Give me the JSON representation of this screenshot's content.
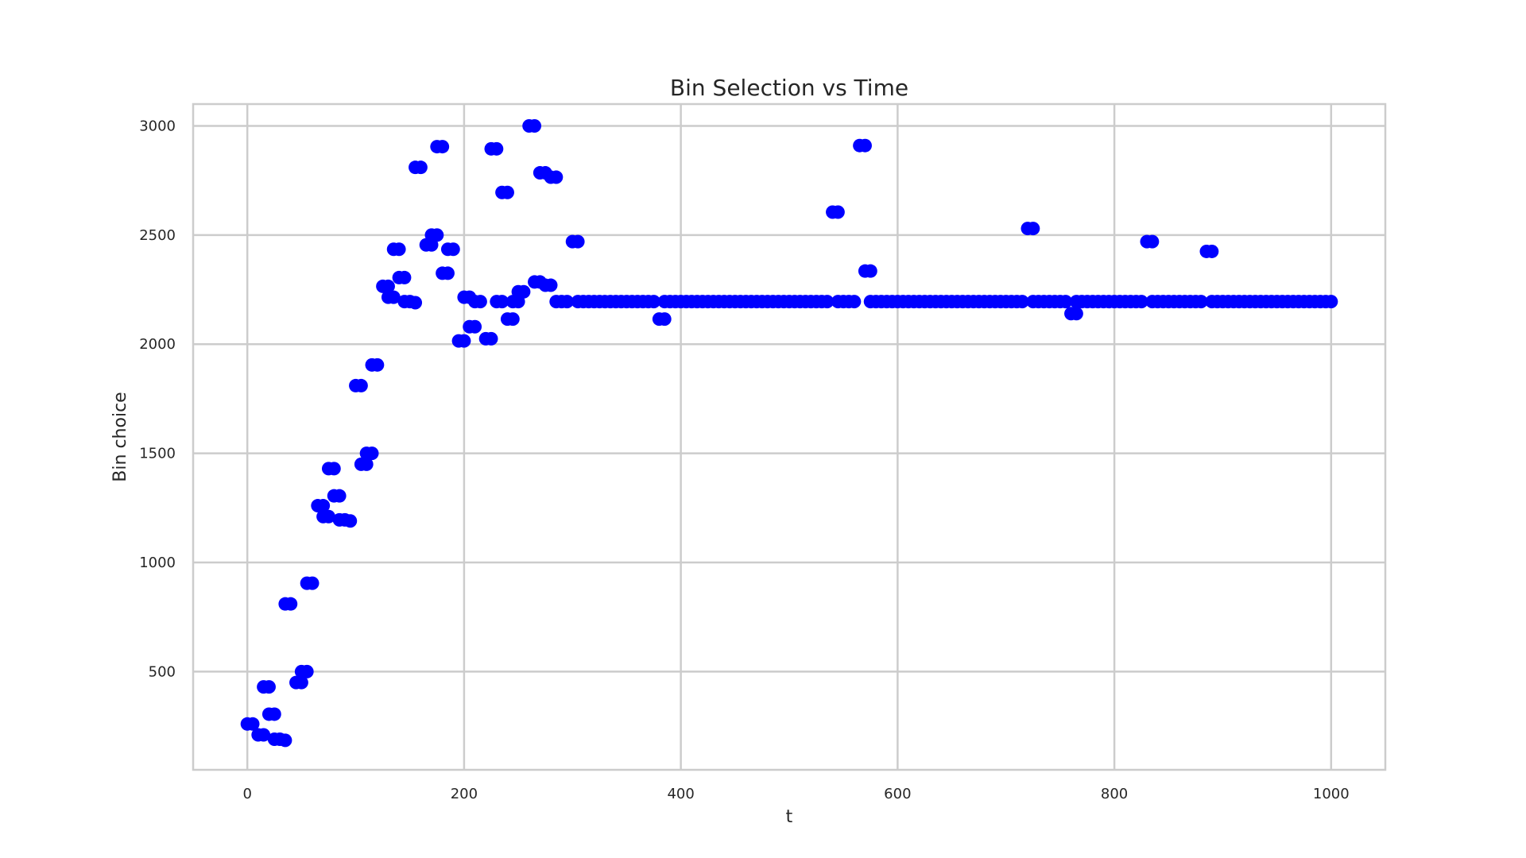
{
  "chart_data": {
    "type": "scatter",
    "title": "Bin Selection vs Time",
    "xlabel": "t",
    "ylabel": "Bin choice",
    "xlim": [
      -50,
      1050
    ],
    "ylim": [
      50,
      3100
    ],
    "xticks": [
      0,
      200,
      400,
      600,
      800,
      1000
    ],
    "yticks": [
      500,
      1000,
      1500,
      2000,
      2500,
      3000
    ],
    "grid": true,
    "legend": "none",
    "marker_color": "#0000ff",
    "series": [
      {
        "points": [
          [
            0,
            260
          ],
          [
            5,
            260
          ],
          [
            10,
            210
          ],
          [
            15,
            210
          ],
          [
            15,
            430
          ],
          [
            20,
            430
          ],
          [
            20,
            305
          ],
          [
            25,
            305
          ],
          [
            25,
            190
          ],
          [
            30,
            190
          ],
          [
            35,
            185
          ],
          [
            35,
            810
          ],
          [
            40,
            810
          ],
          [
            45,
            450
          ],
          [
            50,
            450
          ],
          [
            50,
            500
          ],
          [
            55,
            500
          ],
          [
            55,
            905
          ],
          [
            60,
            905
          ],
          [
            65,
            1260
          ],
          [
            70,
            1260
          ],
          [
            70,
            1210
          ],
          [
            75,
            1210
          ],
          [
            75,
            1430
          ],
          [
            80,
            1430
          ],
          [
            80,
            1305
          ],
          [
            85,
            1305
          ],
          [
            85,
            1195
          ],
          [
            90,
            1195
          ],
          [
            95,
            1190
          ],
          [
            100,
            1810
          ],
          [
            105,
            1810
          ],
          [
            105,
            1450
          ],
          [
            110,
            1450
          ],
          [
            110,
            1500
          ],
          [
            115,
            1500
          ],
          [
            115,
            1905
          ],
          [
            120,
            1905
          ],
          [
            125,
            2265
          ],
          [
            130,
            2265
          ],
          [
            130,
            2215
          ],
          [
            135,
            2215
          ],
          [
            135,
            2435
          ],
          [
            140,
            2435
          ],
          [
            140,
            2305
          ],
          [
            145,
            2305
          ],
          [
            145,
            2195
          ],
          [
            150,
            2195
          ],
          [
            155,
            2190
          ],
          [
            155,
            2810
          ],
          [
            160,
            2810
          ],
          [
            165,
            2455
          ],
          [
            170,
            2455
          ],
          [
            170,
            2500
          ],
          [
            175,
            2500
          ],
          [
            175,
            2905
          ],
          [
            180,
            2905
          ],
          [
            180,
            2325
          ],
          [
            185,
            2325
          ],
          [
            185,
            2435
          ],
          [
            190,
            2435
          ],
          [
            195,
            2015
          ],
          [
            200,
            2015
          ],
          [
            200,
            2215
          ],
          [
            205,
            2215
          ],
          [
            205,
            2080
          ],
          [
            210,
            2080
          ],
          [
            210,
            2195
          ],
          [
            215,
            2195
          ],
          [
            220,
            2025
          ],
          [
            225,
            2025
          ],
          [
            225,
            2895
          ],
          [
            230,
            2895
          ],
          [
            230,
            2195
          ],
          [
            235,
            2195
          ],
          [
            235,
            2695
          ],
          [
            240,
            2695
          ],
          [
            240,
            2115
          ],
          [
            245,
            2115
          ],
          [
            245,
            2195
          ],
          [
            250,
            2195
          ],
          [
            250,
            2240
          ],
          [
            255,
            2240
          ],
          [
            260,
            3000
          ],
          [
            265,
            3000
          ],
          [
            265,
            2285
          ],
          [
            270,
            2285
          ],
          [
            270,
            2785
          ],
          [
            275,
            2785
          ],
          [
            275,
            2270
          ],
          [
            280,
            2270
          ],
          [
            280,
            2765
          ],
          [
            285,
            2765
          ],
          [
            285,
            2195
          ],
          [
            290,
            2195
          ],
          [
            295,
            2195
          ],
          [
            300,
            2470
          ],
          [
            305,
            2470
          ],
          [
            305,
            2195
          ],
          [
            310,
            2195
          ],
          [
            315,
            2195
          ],
          [
            320,
            2195
          ],
          [
            325,
            2195
          ],
          [
            330,
            2195
          ],
          [
            335,
            2195
          ],
          [
            340,
            2195
          ],
          [
            345,
            2195
          ],
          [
            350,
            2195
          ],
          [
            355,
            2195
          ],
          [
            360,
            2195
          ],
          [
            365,
            2195
          ],
          [
            370,
            2195
          ],
          [
            375,
            2195
          ],
          [
            380,
            2115
          ],
          [
            385,
            2115
          ],
          [
            385,
            2195
          ],
          [
            390,
            2195
          ],
          [
            395,
            2195
          ],
          [
            400,
            2195
          ],
          [
            405,
            2195
          ],
          [
            410,
            2195
          ],
          [
            415,
            2195
          ],
          [
            420,
            2195
          ],
          [
            425,
            2195
          ],
          [
            430,
            2195
          ],
          [
            435,
            2195
          ],
          [
            440,
            2195
          ],
          [
            445,
            2195
          ],
          [
            450,
            2195
          ],
          [
            455,
            2195
          ],
          [
            460,
            2195
          ],
          [
            465,
            2195
          ],
          [
            470,
            2195
          ],
          [
            475,
            2195
          ],
          [
            480,
            2195
          ],
          [
            485,
            2195
          ],
          [
            490,
            2195
          ],
          [
            495,
            2195
          ],
          [
            500,
            2195
          ],
          [
            505,
            2195
          ],
          [
            510,
            2195
          ],
          [
            515,
            2195
          ],
          [
            520,
            2195
          ],
          [
            525,
            2195
          ],
          [
            530,
            2195
          ],
          [
            535,
            2195
          ],
          [
            540,
            2605
          ],
          [
            545,
            2605
          ],
          [
            545,
            2195
          ],
          [
            550,
            2195
          ],
          [
            555,
            2195
          ],
          [
            560,
            2195
          ],
          [
            565,
            2910
          ],
          [
            570,
            2910
          ],
          [
            570,
            2335
          ],
          [
            575,
            2335
          ],
          [
            575,
            2195
          ],
          [
            580,
            2195
          ],
          [
            585,
            2195
          ],
          [
            590,
            2195
          ],
          [
            595,
            2195
          ],
          [
            600,
            2195
          ],
          [
            605,
            2195
          ],
          [
            610,
            2195
          ],
          [
            615,
            2195
          ],
          [
            620,
            2195
          ],
          [
            625,
            2195
          ],
          [
            630,
            2195
          ],
          [
            635,
            2195
          ],
          [
            640,
            2195
          ],
          [
            645,
            2195
          ],
          [
            650,
            2195
          ],
          [
            655,
            2195
          ],
          [
            660,
            2195
          ],
          [
            665,
            2195
          ],
          [
            670,
            2195
          ],
          [
            675,
            2195
          ],
          [
            680,
            2195
          ],
          [
            685,
            2195
          ],
          [
            690,
            2195
          ],
          [
            695,
            2195
          ],
          [
            700,
            2195
          ],
          [
            705,
            2195
          ],
          [
            710,
            2195
          ],
          [
            715,
            2195
          ],
          [
            720,
            2530
          ],
          [
            725,
            2530
          ],
          [
            725,
            2195
          ],
          [
            730,
            2195
          ],
          [
            735,
            2195
          ],
          [
            740,
            2195
          ],
          [
            745,
            2195
          ],
          [
            750,
            2195
          ],
          [
            755,
            2195
          ],
          [
            760,
            2140
          ],
          [
            765,
            2140
          ],
          [
            765,
            2195
          ],
          [
            770,
            2195
          ],
          [
            775,
            2195
          ],
          [
            780,
            2195
          ],
          [
            785,
            2195
          ],
          [
            790,
            2195
          ],
          [
            795,
            2195
          ],
          [
            800,
            2195
          ],
          [
            805,
            2195
          ],
          [
            810,
            2195
          ],
          [
            815,
            2195
          ],
          [
            820,
            2195
          ],
          [
            825,
            2195
          ],
          [
            830,
            2470
          ],
          [
            835,
            2470
          ],
          [
            835,
            2195
          ],
          [
            840,
            2195
          ],
          [
            845,
            2195
          ],
          [
            850,
            2195
          ],
          [
            855,
            2195
          ],
          [
            860,
            2195
          ],
          [
            865,
            2195
          ],
          [
            870,
            2195
          ],
          [
            875,
            2195
          ],
          [
            880,
            2195
          ],
          [
            885,
            2425
          ],
          [
            890,
            2425
          ],
          [
            890,
            2195
          ],
          [
            895,
            2195
          ],
          [
            900,
            2195
          ],
          [
            905,
            2195
          ],
          [
            910,
            2195
          ],
          [
            915,
            2195
          ],
          [
            920,
            2195
          ],
          [
            925,
            2195
          ],
          [
            930,
            2195
          ],
          [
            935,
            2195
          ],
          [
            940,
            2195
          ],
          [
            945,
            2195
          ],
          [
            950,
            2195
          ],
          [
            955,
            2195
          ],
          [
            960,
            2195
          ],
          [
            965,
            2195
          ],
          [
            970,
            2195
          ],
          [
            975,
            2195
          ],
          [
            980,
            2195
          ],
          [
            985,
            2195
          ],
          [
            990,
            2195
          ],
          [
            995,
            2195
          ],
          [
            1000,
            2195
          ]
        ]
      }
    ]
  }
}
